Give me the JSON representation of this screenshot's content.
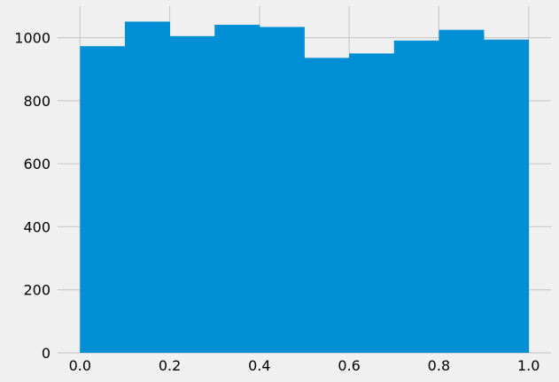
{
  "chart_data": {
    "type": "bar",
    "subtype": "histogram",
    "title": "",
    "xlabel": "",
    "ylabel": "",
    "bin_edges": [
      0.0,
      0.1,
      0.2,
      0.3,
      0.4,
      0.5,
      0.6,
      0.7,
      0.8,
      0.9,
      1.0
    ],
    "values": [
      973,
      1051,
      1005,
      1041,
      1034,
      936,
      950,
      991,
      1025,
      994
    ],
    "xlim": [
      -0.05,
      1.05
    ],
    "ylim": [
      0,
      1100
    ],
    "x_ticks": [
      0.0,
      0.2,
      0.4,
      0.6,
      0.8,
      1.0
    ],
    "x_tick_labels": [
      "0.0",
      "0.2",
      "0.4",
      "0.6",
      "0.8",
      "1.0"
    ],
    "y_ticks": [
      0,
      200,
      400,
      600,
      800,
      1000
    ],
    "y_tick_labels": [
      "0",
      "200",
      "400",
      "600",
      "800",
      "1000"
    ],
    "grid": true,
    "legend": "none",
    "colors": {
      "bar": "#008fd5",
      "background": "#f0f0f0",
      "grid": "#cbcbcb"
    }
  }
}
